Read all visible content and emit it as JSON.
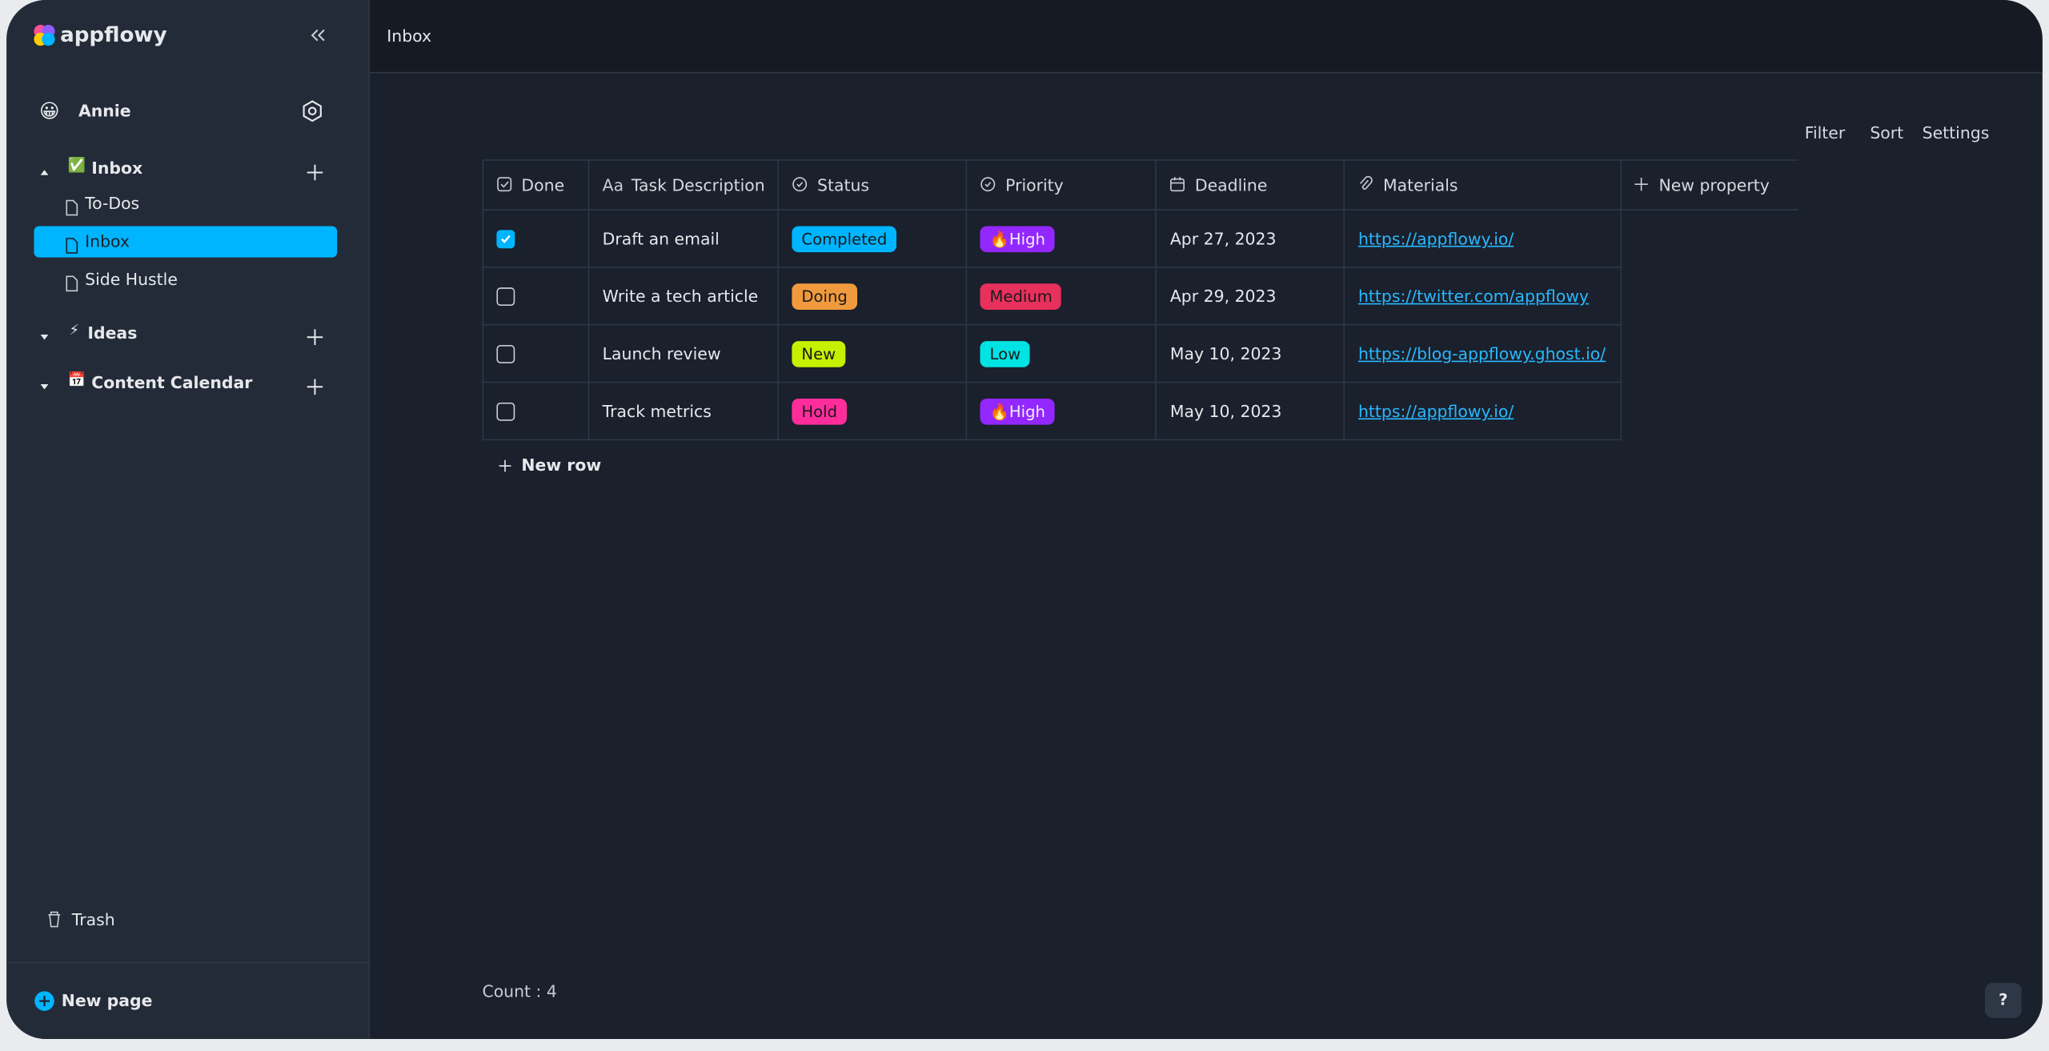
{
  "sidebar": {
    "brand": "appflowy",
    "user": {
      "avatar": "😀",
      "name": "Annie"
    },
    "sections": [
      {
        "label": "Inbox",
        "icon": "✅",
        "children": [
          "To-Dos",
          "Inbox",
          "Side Hustle"
        ],
        "selected": 1
      },
      {
        "label": "Ideas",
        "icon": "⚡",
        "children": []
      },
      {
        "label": "Content Calendar",
        "icon": "📅",
        "children": []
      }
    ],
    "trash": "Trash",
    "new_page": "New page"
  },
  "header": {
    "title": "Inbox"
  },
  "toolbar": [
    "Filter",
    "Sort",
    "Settings"
  ],
  "table": {
    "columns": [
      {
        "label": "Done"
      },
      {
        "label": "Task Description",
        "icon_text": "Aa"
      },
      {
        "label": "Status"
      },
      {
        "label": "Priority"
      },
      {
        "label": "Deadline"
      },
      {
        "label": "Materials"
      }
    ],
    "new_property": "New property",
    "rows": [
      {
        "done": true,
        "task": "Draft an email",
        "status": {
          "label": "Completed",
          "color": "#00b5ff"
        },
        "priority": {
          "label": "🔥High",
          "color": "#9327ff"
        },
        "deadline": "Apr 27, 2023",
        "link": "https://appflowy.io/"
      },
      {
        "done": false,
        "task": "Write a tech article",
        "status": {
          "label": "Doing",
          "color": "#f09a3e"
        },
        "priority": {
          "label": "Medium",
          "color": "#e8305d"
        },
        "deadline": "Apr 29, 2023",
        "link": "https://twitter.com/appflowy"
      },
      {
        "done": false,
        "task": "Launch review",
        "status": {
          "label": "New",
          "color": "#c7f000"
        },
        "priority": {
          "label": "Low",
          "color": "#00e3e3"
        },
        "deadline": "May 10, 2023",
        "link": "https://blog-appflowy.ghost.io/"
      },
      {
        "done": false,
        "task": "Track metrics",
        "status": {
          "label": "Hold",
          "color": "#ff2d9c"
        },
        "priority": {
          "label": "🔥High",
          "color": "#9327ff"
        },
        "deadline": "May 10, 2023",
        "link": "https://appflowy.io/"
      }
    ],
    "new_row": "New row",
    "count": "Count : 4"
  },
  "help": "?"
}
